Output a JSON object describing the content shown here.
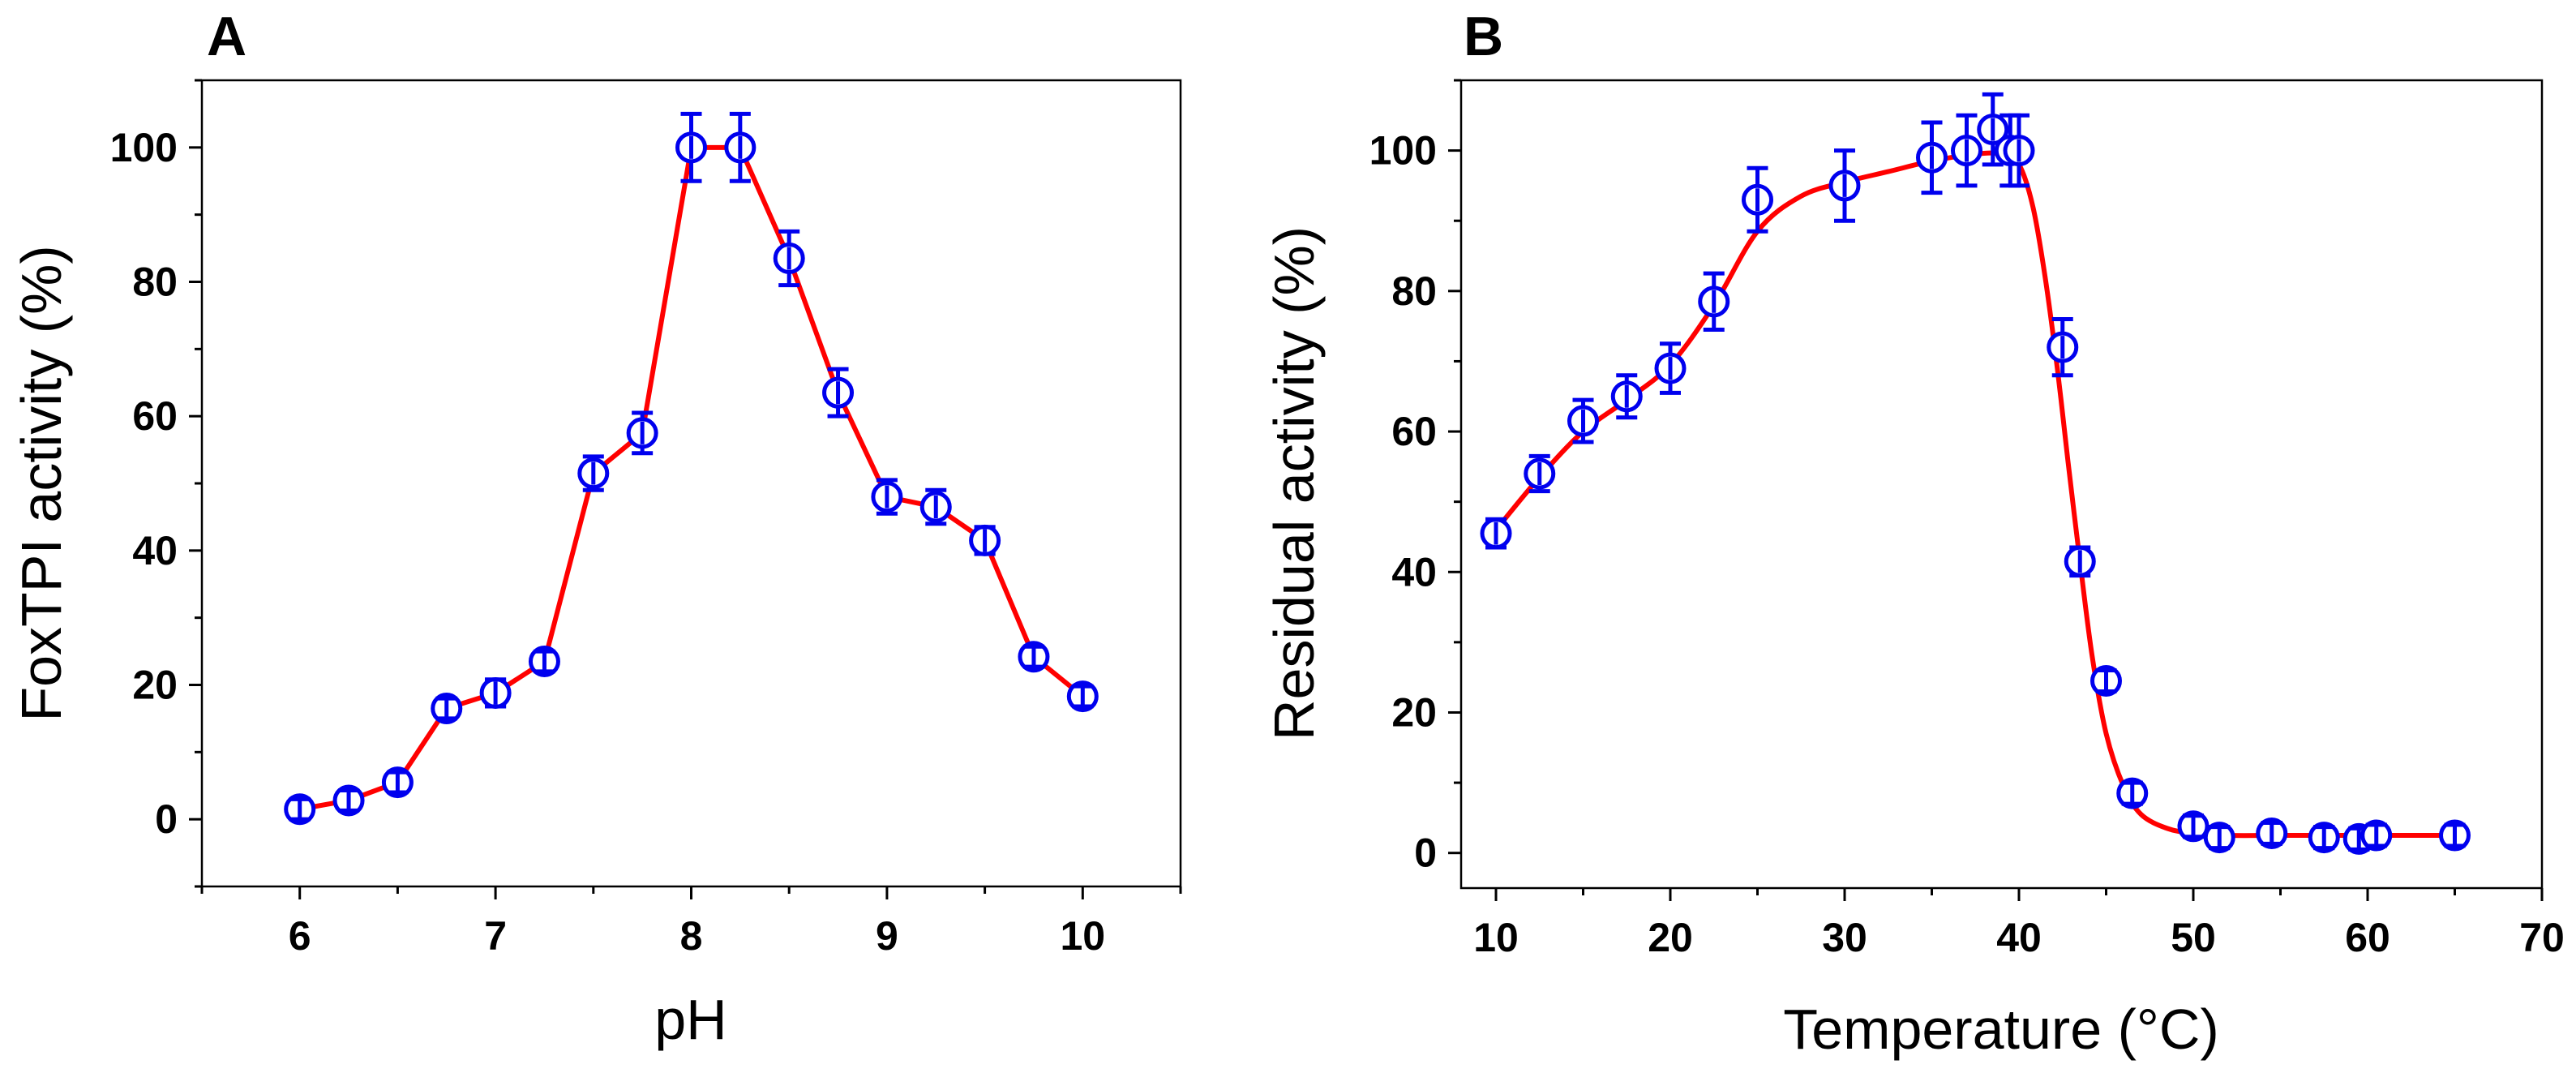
{
  "chart_data": [
    {
      "type": "line",
      "panel": "A",
      "title": "",
      "xlabel": "pH",
      "ylabel": "FoxTPI activity (%)",
      "xlim": [
        5.5,
        10.5
      ],
      "ylim": [
        -10,
        110
      ],
      "xticks": [
        6,
        7,
        8,
        9,
        10
      ],
      "yticks": [
        0,
        20,
        40,
        60,
        80,
        100
      ],
      "xtick_labels": [
        "6",
        "7",
        "8",
        "9",
        "10"
      ],
      "ytick_labels": [
        "0",
        "20",
        "40",
        "60",
        "80",
        "100"
      ],
      "series": [
        {
          "name": "FoxTPI activity",
          "x": [
            6,
            6.25,
            6.5,
            6.75,
            7,
            7.25,
            7.5,
            7.75,
            8,
            8.25,
            8.5,
            8.75,
            9,
            9.25,
            9.5,
            9.75,
            10
          ],
          "y": [
            1.5,
            2.8,
            5.5,
            16.5,
            18.8,
            23.5,
            51.5,
            57.5,
            100,
            100,
            83.5,
            63.5,
            48,
            46.5,
            41.5,
            24.2,
            18.3
          ],
          "error": [
            1.5,
            1.5,
            1.5,
            1.5,
            2,
            1.5,
            2.5,
            3,
            5,
            5,
            4,
            3.5,
            2.5,
            2.5,
            2,
            1.5,
            1.5
          ]
        }
      ],
      "grid": false
    },
    {
      "type": "scatter",
      "panel": "B",
      "title": "",
      "xlabel": "Temperature (°C)",
      "ylabel": "Residual activity (%)",
      "xlim": [
        8,
        70
      ],
      "ylim": [
        -5,
        110
      ],
      "xticks": [
        10,
        20,
        30,
        40,
        50,
        60,
        70
      ],
      "yticks": [
        0,
        20,
        40,
        60,
        80,
        100
      ],
      "xtick_labels": [
        "10",
        "20",
        "30",
        "40",
        "50",
        "60",
        "70"
      ],
      "ytick_labels": [
        "0",
        "20",
        "40",
        "60",
        "80",
        "100"
      ],
      "series": [
        {
          "name": "Residual activity",
          "x": [
            10,
            12.5,
            15,
            17.5,
            20,
            22.5,
            25,
            30,
            35,
            37,
            38.5,
            39.5,
            40,
            42.5,
            43.5,
            45,
            46.5,
            50,
            51.5,
            54.5,
            57.5,
            59.5,
            60.5,
            65
          ],
          "y": [
            45.5,
            54,
            61.5,
            65,
            69,
            78.5,
            93,
            95,
            99,
            100,
            103,
            100,
            100,
            72,
            41.5,
            24.5,
            8.5,
            3.8,
            2.2,
            2.8,
            2.2,
            2,
            2.5,
            2.5
          ],
          "error": [
            2,
            2.5,
            3,
            3,
            3.5,
            4,
            4.5,
            5,
            5,
            5,
            5,
            5,
            5,
            4,
            2,
            1.5,
            1.5,
            1.5,
            1.5,
            1.5,
            1.5,
            1.5,
            1.5,
            1.5
          ]
        },
        {
          "name": "Fit",
          "x": [
            10,
            12.5,
            15,
            17.5,
            20,
            22.5,
            25,
            27.5,
            30,
            32.5,
            35,
            37.5,
            39,
            40,
            40.8,
            41.5,
            42.2,
            42.8,
            43.5,
            44.2,
            45,
            46,
            47,
            48.5,
            50,
            52,
            55,
            60,
            65
          ],
          "y": [
            46,
            53.5,
            60,
            64.5,
            69.5,
            78,
            88.5,
            93.5,
            95.5,
            97,
            98.5,
            99.5,
            99.5,
            98,
            92,
            82,
            69,
            56,
            41.5,
            28,
            17,
            9.5,
            5.5,
            3.5,
            2.8,
            2.5,
            2.5,
            2.5,
            2.5
          ]
        }
      ],
      "grid": false
    }
  ]
}
